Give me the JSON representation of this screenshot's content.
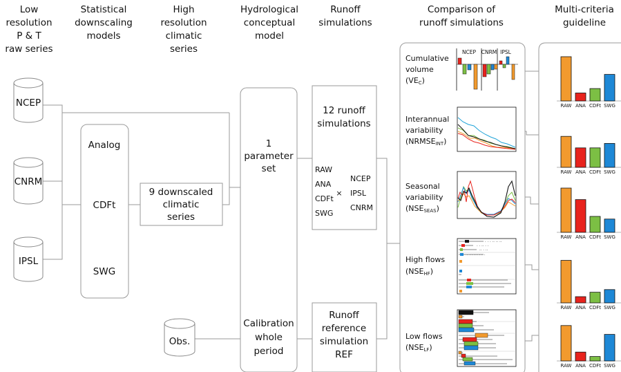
{
  "headers": [
    [
      "Low",
      "resolution",
      "P & T",
      "raw series"
    ],
    [
      "Statistical",
      "downscaling",
      "models"
    ],
    [
      "High",
      "resolution",
      "climatic",
      "series"
    ],
    [
      "Hydrological",
      "conceptual",
      "model"
    ],
    [
      "Runoff",
      "simulations"
    ],
    [
      "Comparison of",
      "runoff simulations"
    ],
    [
      "Multi-criteria",
      "guideline"
    ]
  ],
  "reanalyses": [
    "NCEP",
    "CNRM",
    "IPSL"
  ],
  "observations": "Obs.",
  "methods": [
    "Analog",
    "CDFt",
    "SWG"
  ],
  "downscaled_box": [
    "9 downscaled",
    "climatic",
    "series"
  ],
  "parameter_box": [
    "1",
    "parameter",
    "set"
  ],
  "calibration_box": [
    "Calibration",
    "whole",
    "period"
  ],
  "runoff_box": {
    "title": [
      "12 runoff",
      "simulations"
    ],
    "left": [
      "RAW",
      "ANA",
      "CDFt",
      "SWG"
    ],
    "times": "×",
    "right": [
      "NCEP",
      "IPSL",
      "CNRM"
    ]
  },
  "reference_box": [
    "Runoff",
    "reference",
    "simulation",
    "REF"
  ],
  "criteria": [
    {
      "name": [
        "Cumulative",
        "volume"
      ],
      "abbr": "(VE",
      "sub": "C",
      "close": ")"
    },
    {
      "name": [
        "Interannual",
        "variability"
      ],
      "abbr": "(NRMSE",
      "sub": "INT",
      "close": ")"
    },
    {
      "name": [
        "Seasonal",
        "variability"
      ],
      "abbr": "(NSE",
      "sub": "SEAS",
      "close": ")"
    },
    {
      "name": [
        "High flows"
      ],
      "abbr": "(NSE",
      "sub": "HF",
      "close": ")"
    },
    {
      "name": [
        "Low flows"
      ],
      "abbr": "(NSE",
      "sub": "LF",
      "close": ")"
    }
  ],
  "ve_groups": [
    "NCEP",
    "CNRM",
    "IPSL"
  ],
  "colors": {
    "RAW": "#f29a2e",
    "ANA": "#e8231d",
    "CDFt": "#7cbf44",
    "SWG": "#1e88d6",
    "line": "#999999"
  },
  "guideline": {
    "methods": [
      "RAW",
      "ANA",
      "CDFt",
      "SWG"
    ],
    "scores": [
      [
        1.0,
        0.18,
        0.28,
        0.6
      ],
      [
        0.7,
        0.44,
        0.44,
        0.54
      ],
      [
        1.0,
        0.74,
        0.36,
        0.3
      ],
      [
        0.96,
        0.14,
        0.24,
        0.3
      ],
      [
        0.8,
        0.2,
        0.1,
        0.6
      ]
    ]
  }
}
